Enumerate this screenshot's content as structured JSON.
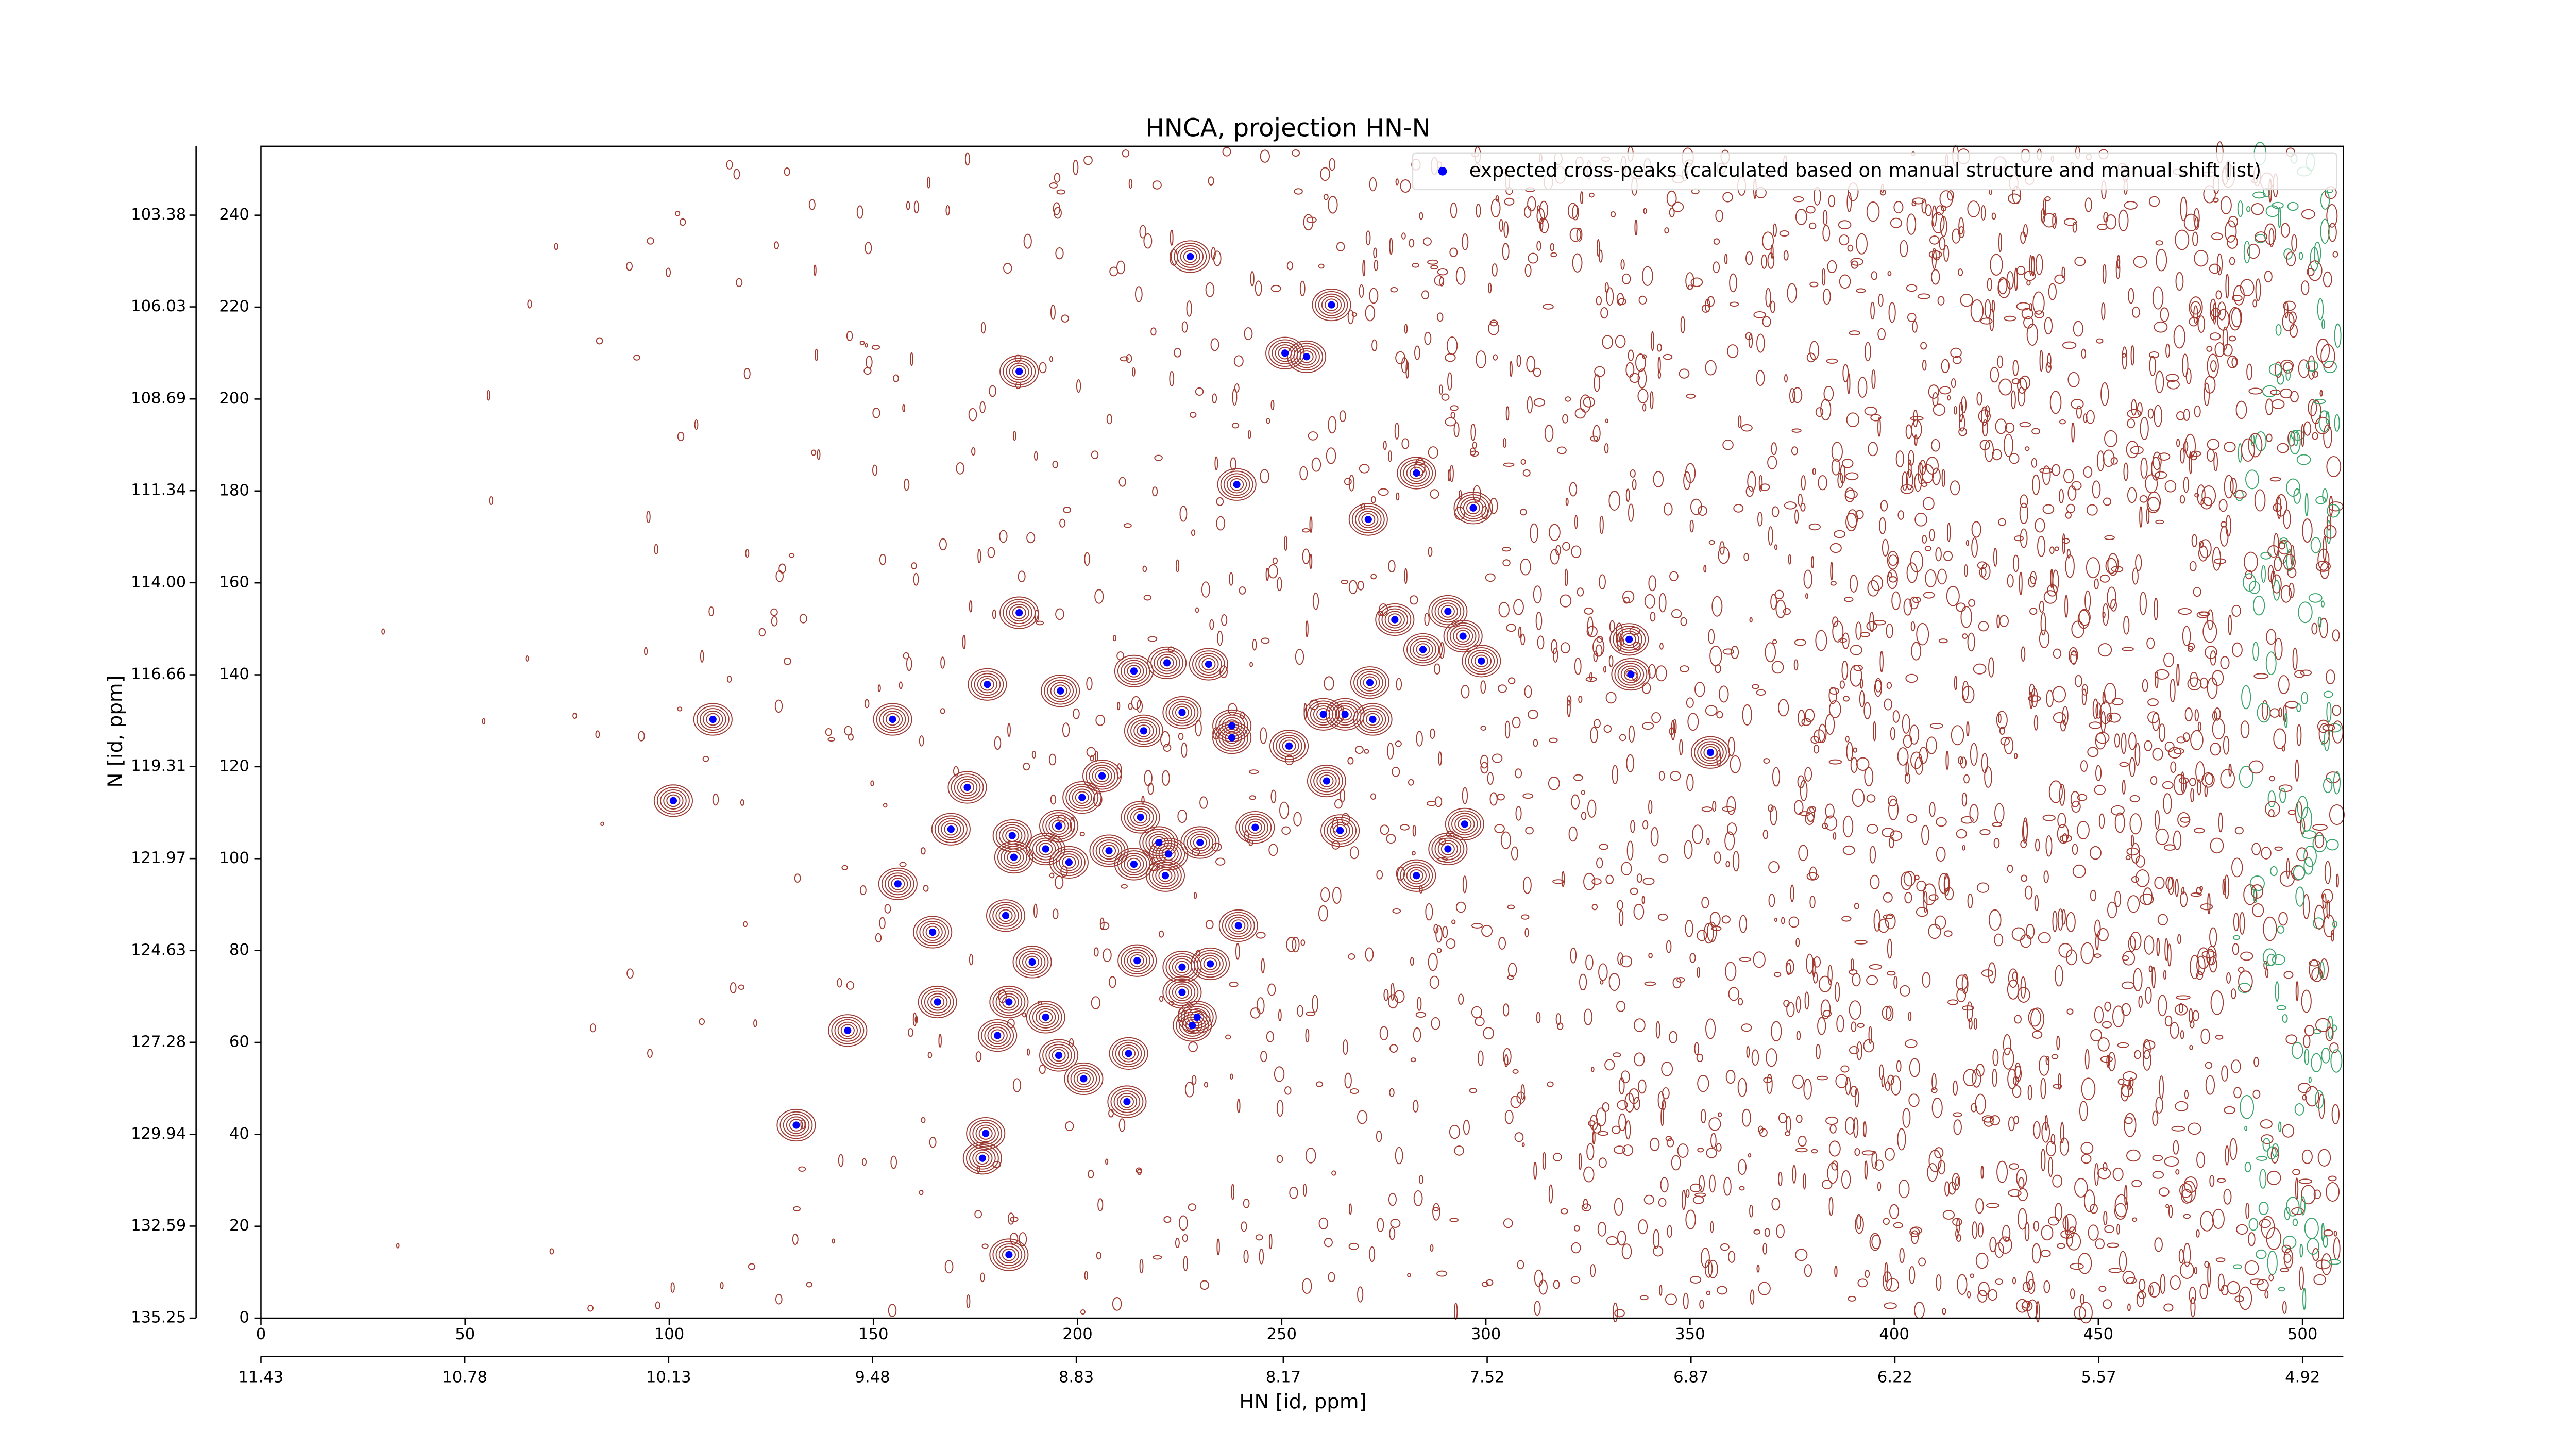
{
  "chart_data": {
    "type": "scatter",
    "title": "HNCA, projection HN-N",
    "xlabel": "HN [id, ppm]",
    "ylabel": "N [id, ppm]",
    "xlim": [
      0,
      510
    ],
    "xticks": [
      0,
      50,
      100,
      150,
      200,
      250,
      300,
      350,
      400,
      450,
      500
    ],
    "x2lim": [
      11.43,
      4.79
    ],
    "x2ticks": [
      11.43,
      10.78,
      10.13,
      9.48,
      8.83,
      8.17,
      7.52,
      6.87,
      6.22,
      5.57,
      4.92
    ],
    "ylim": [
      0,
      255
    ],
    "yticks": [
      0,
      20,
      40,
      60,
      80,
      100,
      120,
      140,
      160,
      180,
      200,
      220,
      240
    ],
    "y2lim": [
      135.25,
      101.39
    ],
    "y2ticks": [
      135.25,
      132.59,
      129.94,
      127.28,
      124.63,
      121.97,
      119.31,
      116.66,
      {
        "value": 114,
        "label": "114.00"
      },
      111.34,
      108.69,
      106.03,
      103.38
    ],
    "legend": "upper right",
    "series": [
      {
        "name": "expected cross-peaks (calculated based on manual structure and manual shift list)",
        "color": "#0000ff",
        "x": [
          227.6,
          262.2,
          250.8,
          256.1,
          185.7,
          239.0,
          283.0,
          296.9,
          271.2,
          185.7,
          277.7,
          290.7,
          294.4,
          284.6,
          298.9,
          335.1,
          335.5,
          177.9,
          195.8,
          213.8,
          221.9,
          232.1,
          271.6,
          154.7,
          110.7,
          216.2,
          225.6,
          237.8,
          237.8,
          260.2,
          265.5,
          272.3,
          251.8,
          355.0,
          206.0,
          173.0,
          201.1,
          261.0,
          101.0,
          215.4,
          169.0,
          195.4,
          243.5,
          264.3,
          294.8,
          184.0,
          219.9,
          230.0,
          192.2,
          207.7,
          222.3,
          290.7,
          184.4,
          197.9,
          213.8,
          221.5,
          283.0,
          156.0,
          182.4,
          239.4,
          164.5,
          214.6,
          188.9,
          225.6,
          232.5,
          225.6,
          165.7,
          183.2,
          192.2,
          229.3,
          228.1,
          143.7,
          180.4,
          195.4,
          212.5,
          201.5,
          212.1,
          131.1,
          177.5,
          176.7,
          183.2
        ],
        "values": [
          231.0,
          220.5,
          210.0,
          209.2,
          206.0,
          181.4,
          183.9,
          176.3,
          173.8,
          153.5,
          152.0,
          153.8,
          148.4,
          145.5,
          143.0,
          147.7,
          140.1,
          137.9,
          136.5,
          140.8,
          142.6,
          142.3,
          138.3,
          130.3,
          130.3,
          127.8,
          131.8,
          128.9,
          126.3,
          131.4,
          131.4,
          130.3,
          124.5,
          123.1,
          118.0,
          115.5,
          113.3,
          116.9,
          112.6,
          109.0,
          106.4,
          107.1,
          106.8,
          106.1,
          107.5,
          105.0,
          103.5,
          103.5,
          102.1,
          101.7,
          101.0,
          102.1,
          100.3,
          99.2,
          98.8,
          96.3,
          96.3,
          94.5,
          87.6,
          85.4,
          84.0,
          77.8,
          77.5,
          76.4,
          77.1,
          70.9,
          68.8,
          68.8,
          65.5,
          65.5,
          63.7,
          62.6,
          61.5,
          57.2,
          57.6,
          52.1,
          47.1,
          42.0,
          40.2,
          34.8,
          13.8
        ]
      }
    ]
  }
}
